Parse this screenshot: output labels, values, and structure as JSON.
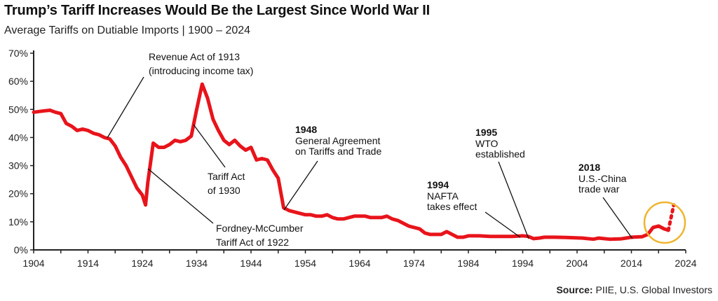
{
  "title": "Trump’s Tariff Increases Would Be the Largest Since World War II",
  "subtitle": "Average Tariffs on Dutiable Imports | 1900 – 2024",
  "source_label": "Source:",
  "source_text": "PIIE, U.S. Global Investors",
  "colors": {
    "line": "#E8141B",
    "highlight_circle": "#F0B42E",
    "axis": "#222222"
  },
  "chart_data": {
    "type": "line",
    "title": "Trump’s Tariff Increases Would Be the Largest Since World War II",
    "subtitle": "Average Tariffs on Dutiable Imports | 1900 – 2024",
    "xlim": [
      1904,
      2024
    ],
    "ylim": [
      0,
      70
    ],
    "x_ticks": [
      1904,
      1914,
      1924,
      1934,
      1944,
      1954,
      1964,
      1974,
      1984,
      1994,
      2004,
      2014,
      2024
    ],
    "y_ticks": [
      "0%",
      "10%",
      "20%",
      "30%",
      "40%",
      "50%",
      "60%",
      "70%"
    ],
    "y_tick_values": [
      0,
      10,
      20,
      30,
      40,
      50,
      60,
      70
    ],
    "grid": false,
    "series": [
      {
        "style": "solid",
        "points": [
          [
            1904,
            49
          ],
          [
            1906,
            49.5
          ],
          [
            1907,
            49.7
          ],
          [
            1908,
            49
          ],
          [
            1909,
            48.5
          ],
          [
            1910,
            45
          ],
          [
            1911,
            44
          ],
          [
            1912,
            42.5
          ],
          [
            1913,
            43
          ],
          [
            1914,
            42.5
          ],
          [
            1915,
            41.5
          ],
          [
            1916,
            41
          ],
          [
            1917,
            40
          ],
          [
            1918,
            39.5
          ],
          [
            1919,
            37
          ],
          [
            1920,
            33
          ],
          [
            1921,
            30
          ],
          [
            1922,
            26
          ],
          [
            1923,
            22
          ],
          [
            1924,
            19.5
          ],
          [
            1924.6,
            16
          ],
          [
            1925,
            24
          ],
          [
            1926,
            38
          ],
          [
            1927,
            36.5
          ],
          [
            1928,
            36.5
          ],
          [
            1929,
            37.5
          ],
          [
            1930,
            39
          ],
          [
            1931,
            38.5
          ],
          [
            1932,
            39
          ],
          [
            1933,
            40.5
          ],
          [
            1934,
            50
          ],
          [
            1935,
            59
          ],
          [
            1936,
            54
          ],
          [
            1937,
            46.5
          ],
          [
            1938,
            42.5
          ],
          [
            1939,
            39
          ],
          [
            1940,
            37.5
          ],
          [
            1941,
            39
          ],
          [
            1942,
            37
          ],
          [
            1943,
            35.5
          ],
          [
            1944,
            36.5
          ],
          [
            1945,
            32
          ],
          [
            1946,
            32.5
          ],
          [
            1947,
            32
          ],
          [
            1948,
            28.5
          ],
          [
            1949,
            25.5
          ],
          [
            1950,
            15
          ],
          [
            1951,
            14
          ],
          [
            1952,
            13.5
          ],
          [
            1953,
            13
          ],
          [
            1954,
            12.5
          ],
          [
            1955,
            12.5
          ],
          [
            1956,
            12
          ],
          [
            1957,
            12
          ],
          [
            1958,
            12.5
          ],
          [
            1959,
            11.5
          ],
          [
            1960,
            11
          ],
          [
            1961,
            11
          ],
          [
            1962,
            11.5
          ],
          [
            1963,
            12
          ],
          [
            1964,
            12
          ],
          [
            1965,
            12
          ],
          [
            1966,
            11.5
          ],
          [
            1967,
            11.5
          ],
          [
            1968,
            11.5
          ],
          [
            1969,
            12
          ],
          [
            1970,
            11
          ],
          [
            1971,
            10.5
          ],
          [
            1972,
            9.5
          ],
          [
            1973,
            8.5
          ],
          [
            1974,
            8
          ],
          [
            1975,
            7.5
          ],
          [
            1976,
            6
          ],
          [
            1977,
            5.5
          ],
          [
            1978,
            5.5
          ],
          [
            1979,
            5.5
          ],
          [
            1980,
            6.5
          ],
          [
            1981,
            5.5
          ],
          [
            1982,
            4.5
          ],
          [
            1983,
            4.5
          ],
          [
            1984,
            5
          ],
          [
            1986,
            5
          ],
          [
            1988,
            4.8
          ],
          [
            1990,
            4.8
          ],
          [
            1992,
            4.8
          ],
          [
            1994,
            5
          ],
          [
            1995,
            4.8
          ],
          [
            1996,
            4
          ],
          [
            1997,
            4.2
          ],
          [
            1998,
            4.5
          ],
          [
            2000,
            4.5
          ],
          [
            2002,
            4.4
          ],
          [
            2005,
            4.2
          ],
          [
            2007,
            3.8
          ],
          [
            2008,
            4.2
          ],
          [
            2010,
            3.8
          ],
          [
            2012,
            3.9
          ],
          [
            2014,
            4.5
          ],
          [
            2016,
            4.7
          ],
          [
            2017,
            5.5
          ],
          [
            2018,
            8
          ],
          [
            2019,
            8.5
          ],
          [
            2020,
            7.5
          ],
          [
            2020.8,
            7
          ]
        ]
      },
      {
        "style": "dotted",
        "points": [
          [
            2020.8,
            7
          ],
          [
            2021.8,
            16
          ]
        ]
      }
    ],
    "annotations": [
      {
        "year_bold": "",
        "lines": [
          "Revenue Act of 1913",
          "(introducing income tax)"
        ]
      },
      {
        "year_bold": "",
        "lines": [
          "Tariff Act",
          "of 1930"
        ]
      },
      {
        "year_bold": "",
        "lines": [
          "Fordney-McCumber",
          "Tariff Act of 1922"
        ]
      },
      {
        "year_bold": "1948",
        "lines": [
          "General Agreement",
          "on Tariffs and Trade"
        ]
      },
      {
        "year_bold": "1994",
        "lines": [
          "NAFTA",
          "takes effect"
        ]
      },
      {
        "year_bold": "1995",
        "lines": [
          "WTO",
          "established"
        ]
      },
      {
        "year_bold": "2018",
        "lines": [
          "U.S.-China",
          "trade war"
        ]
      }
    ]
  }
}
